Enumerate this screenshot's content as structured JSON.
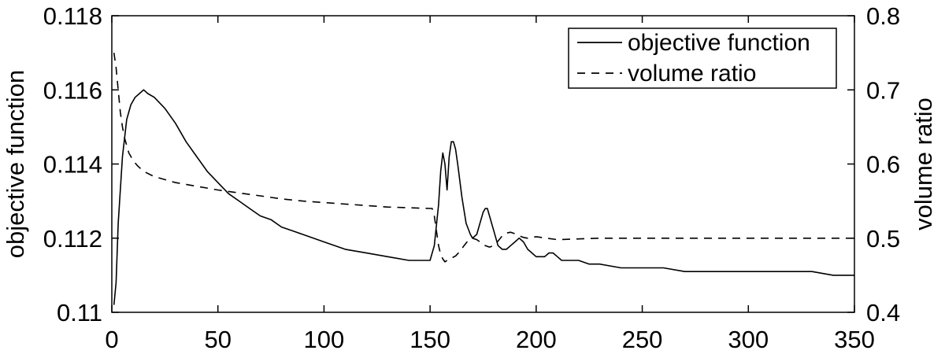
{
  "chart_data": {
    "type": "line",
    "title": "",
    "xlabel": "",
    "ylabel": "objective function",
    "y2label": "volume ratio",
    "xlim": [
      0,
      350
    ],
    "ylim": [
      0.11,
      0.118
    ],
    "y2lim": [
      0.4,
      0.8
    ],
    "xticks": [
      0,
      50,
      100,
      150,
      200,
      250,
      300,
      350
    ],
    "xtick_labels": [
      "0",
      "50",
      "100",
      "150",
      "200",
      "250",
      "300",
      "350"
    ],
    "yticks": [
      0.11,
      0.112,
      0.114,
      0.116,
      0.118
    ],
    "ytick_labels": [
      "0.11",
      "0.112",
      "0.114",
      "0.116",
      "0.118"
    ],
    "y2ticks": [
      0.4,
      0.5,
      0.6,
      0.7,
      0.8
    ],
    "y2tick_labels": [
      "0.4",
      "0.5",
      "0.6",
      "0.7",
      "0.8"
    ],
    "grid": false,
    "legend": {
      "position": "top-right",
      "entries": [
        "objective function",
        "volume ratio"
      ]
    },
    "series": [
      {
        "name": "objective function",
        "axis": "left",
        "style": "solid",
        "color": "#000000",
        "x": [
          1,
          2,
          3,
          5,
          7,
          9,
          11,
          13,
          15,
          17,
          20,
          25,
          30,
          35,
          40,
          45,
          50,
          55,
          60,
          65,
          70,
          75,
          80,
          85,
          90,
          95,
          100,
          110,
          120,
          130,
          140,
          145,
          150,
          152,
          154,
          155,
          156,
          157,
          158,
          159,
          160,
          161,
          162,
          163,
          165,
          167,
          169,
          170,
          172,
          174,
          175,
          176,
          177,
          178,
          180,
          182,
          184,
          186,
          188,
          190,
          192,
          194,
          196,
          198,
          200,
          202,
          204,
          206,
          208,
          210,
          212,
          215,
          220,
          225,
          230,
          240,
          250,
          260,
          270,
          280,
          290,
          300,
          310,
          320,
          330,
          340,
          350
        ],
        "y": [
          0.1102,
          0.1108,
          0.1124,
          0.1142,
          0.1152,
          0.1156,
          0.1158,
          0.1159,
          0.116,
          0.1159,
          0.1158,
          0.1155,
          0.1151,
          0.1146,
          0.1142,
          0.1138,
          0.1135,
          0.1132,
          0.113,
          0.1128,
          0.1126,
          0.1125,
          0.1123,
          0.1122,
          0.1121,
          0.112,
          0.1119,
          0.1117,
          0.1116,
          0.1115,
          0.1114,
          0.1114,
          0.1114,
          0.1118,
          0.1129,
          0.1138,
          0.1143,
          0.114,
          0.1133,
          0.1142,
          0.1146,
          0.1146,
          0.1144,
          0.114,
          0.1131,
          0.1124,
          0.1121,
          0.112,
          0.1121,
          0.1125,
          0.1127,
          0.1128,
          0.1128,
          0.1126,
          0.1122,
          0.1118,
          0.1117,
          0.1117,
          0.1118,
          0.1119,
          0.112,
          0.1119,
          0.1117,
          0.1116,
          0.1115,
          0.1115,
          0.1115,
          0.1116,
          0.1116,
          0.1115,
          0.1114,
          0.1114,
          0.1114,
          0.1113,
          0.1113,
          0.1112,
          0.1112,
          0.1112,
          0.1111,
          0.1111,
          0.1111,
          0.1111,
          0.1111,
          0.1111,
          0.1111,
          0.111,
          0.111
        ]
      },
      {
        "name": "volume ratio",
        "axis": "right",
        "style": "dashed",
        "color": "#000000",
        "x": [
          1,
          2,
          3,
          4,
          5,
          6,
          7,
          8,
          10,
          12,
          15,
          20,
          30,
          40,
          50,
          60,
          70,
          80,
          90,
          100,
          110,
          120,
          130,
          140,
          150,
          151,
          152,
          153,
          154,
          155,
          156,
          157,
          158,
          159,
          160,
          162,
          164,
          166,
          168,
          170,
          172,
          174,
          176,
          178,
          180,
          182,
          184,
          186,
          188,
          190,
          192,
          194,
          196,
          198,
          200,
          205,
          210,
          220,
          230,
          240,
          250,
          260,
          270,
          280,
          290,
          300,
          310,
          320,
          330,
          340,
          350
        ],
        "y": [
          0.75,
          0.73,
          0.7,
          0.67,
          0.65,
          0.635,
          0.625,
          0.615,
          0.605,
          0.598,
          0.59,
          0.583,
          0.575,
          0.57,
          0.565,
          0.561,
          0.557,
          0.553,
          0.55,
          0.548,
          0.546,
          0.544,
          0.542,
          0.541,
          0.54,
          0.54,
          0.53,
          0.51,
          0.49,
          0.478,
          0.472,
          0.468,
          0.47,
          0.472,
          0.473,
          0.476,
          0.482,
          0.49,
          0.497,
          0.5,
          0.498,
          0.494,
          0.49,
          0.488,
          0.49,
          0.496,
          0.503,
          0.507,
          0.508,
          0.506,
          0.503,
          0.501,
          0.5,
          0.501,
          0.502,
          0.5,
          0.498,
          0.499,
          0.5,
          0.5,
          0.5,
          0.5,
          0.5,
          0.5,
          0.5,
          0.5,
          0.5,
          0.5,
          0.5,
          0.5,
          0.5
        ]
      }
    ]
  }
}
